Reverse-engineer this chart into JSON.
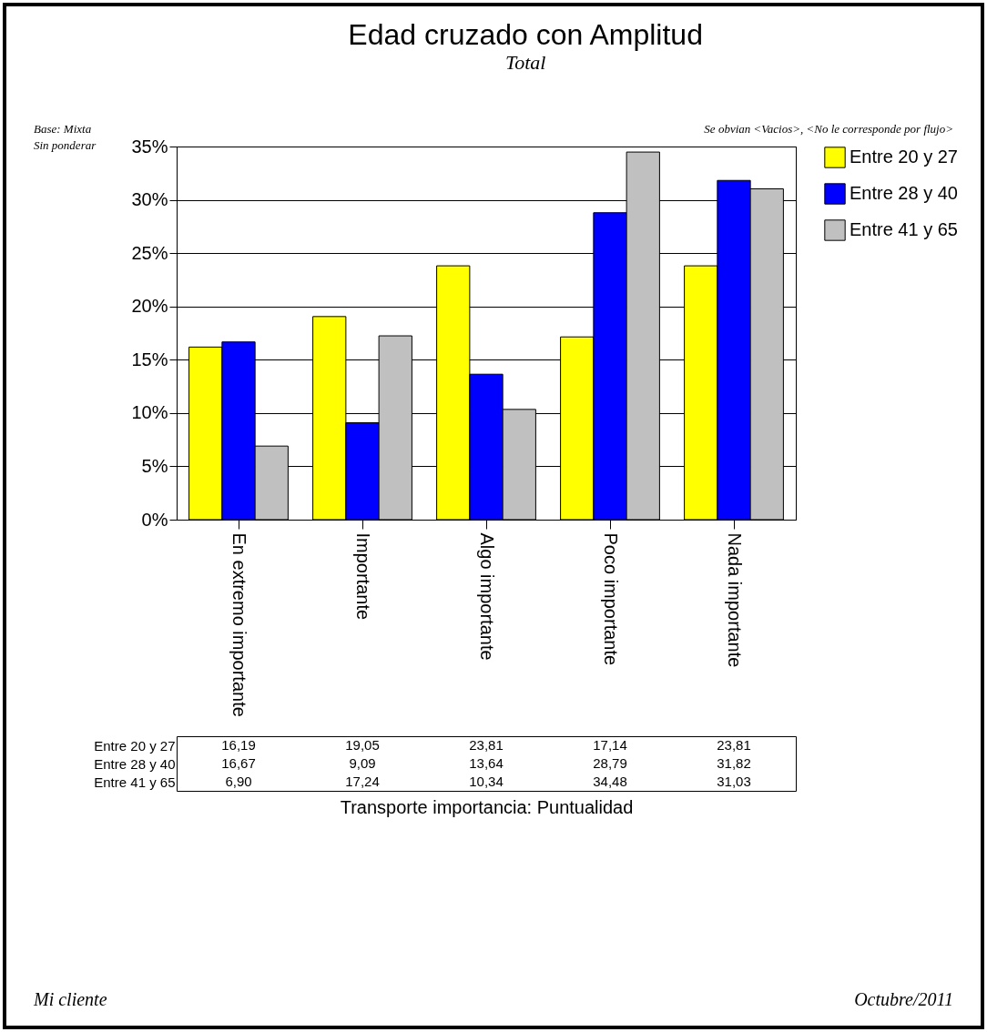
{
  "chart_data": {
    "type": "bar",
    "title": "Edad cruzado con Amplitud",
    "subtitle": "Total",
    "xlabel": "Transporte importancia: Puntualidad",
    "annotations": [
      "Base: Mixta",
      "Sin ponderar",
      "Se obvian <Vacios>, <No le corresponde por flujo>",
      "Mi cliente",
      "Octubre/2011"
    ],
    "categories": [
      "En extremo importante",
      "Importante",
      "Algo importante",
      "Poco importante",
      "Nada importante"
    ],
    "series": [
      {
        "name": "Entre 20 y 27",
        "color": "#ffff00",
        "values": [
          16.19,
          19.05,
          23.81,
          17.14,
          23.81
        ],
        "value_labels": [
          "16,19",
          "19,05",
          "23,81",
          "17,14",
          "23,81"
        ]
      },
      {
        "name": "Entre 28 y 40",
        "color": "#0000ff",
        "values": [
          16.67,
          9.09,
          13.64,
          28.79,
          31.82
        ],
        "value_labels": [
          "16,67",
          "9,09",
          "13,64",
          "28,79",
          "31,82"
        ]
      },
      {
        "name": "Entre 41 y 65",
        "color": "#c0c0c0",
        "values": [
          6.9,
          17.24,
          10.34,
          34.48,
          31.03
        ],
        "value_labels": [
          "6,90",
          "17,24",
          "10,34",
          "34,48",
          "31,03"
        ]
      }
    ],
    "ylim": [
      0,
      35
    ],
    "yticks": [
      {
        "value": 0,
        "label": "0%"
      },
      {
        "value": 5,
        "label": "5%"
      },
      {
        "value": 10,
        "label": "10%"
      },
      {
        "value": 15,
        "label": "15%"
      },
      {
        "value": 20,
        "label": "20%"
      },
      {
        "value": 25,
        "label": "25%"
      },
      {
        "value": 30,
        "label": "30%"
      },
      {
        "value": 35,
        "label": "35%"
      }
    ],
    "grid": "y",
    "legend": "top right"
  }
}
